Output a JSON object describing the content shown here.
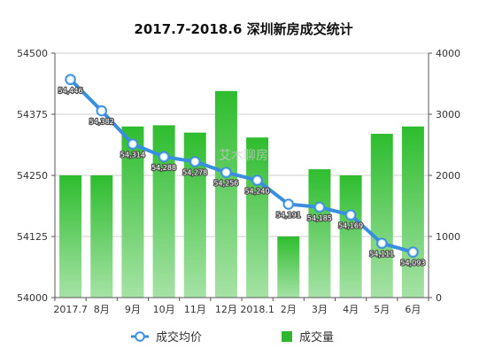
{
  "chart_data": {
    "type": "bar",
    "title": "2017.7-2018.6 深圳新房成交统计",
    "categories": [
      "2017.7",
      "8月",
      "9月",
      "10月",
      "11月",
      "12月",
      "2018.1",
      "2月",
      "3月",
      "4月",
      "5月",
      "6月"
    ],
    "left_axis": {
      "ylim": [
        54000,
        54500
      ],
      "ticks": [
        "54000",
        "54125",
        "54250",
        "54375",
        "54500"
      ]
    },
    "right_axis": {
      "ylim": [
        0,
        4000
      ],
      "ticks": [
        "0",
        "1000",
        "2000",
        "3000",
        "4000"
      ]
    },
    "grid": true,
    "legend_position": "bottom",
    "watermark": "艾木聊房",
    "series": [
      {
        "name": "成交量",
        "type": "bar",
        "axis": "right",
        "color": "#2fb52f",
        "values": [
          2000,
          2000,
          2800,
          2820,
          2700,
          3380,
          2620,
          1000,
          2100,
          2000,
          2680,
          2800
        ]
      },
      {
        "name": "成交均价",
        "type": "line",
        "axis": "left",
        "color": "#3a8ee0",
        "values": [
          54446,
          54382,
          54314,
          54288,
          54278,
          54256,
          54240,
          54191,
          54185,
          54169,
          54111,
          54093
        ],
        "labels": [
          "54,446",
          "54,382",
          "54,314",
          "54,288",
          "54,278",
          "54,256",
          "54,240",
          "54,191",
          "54,185",
          "54,169",
          "54,111",
          "54,093"
        ]
      }
    ]
  }
}
